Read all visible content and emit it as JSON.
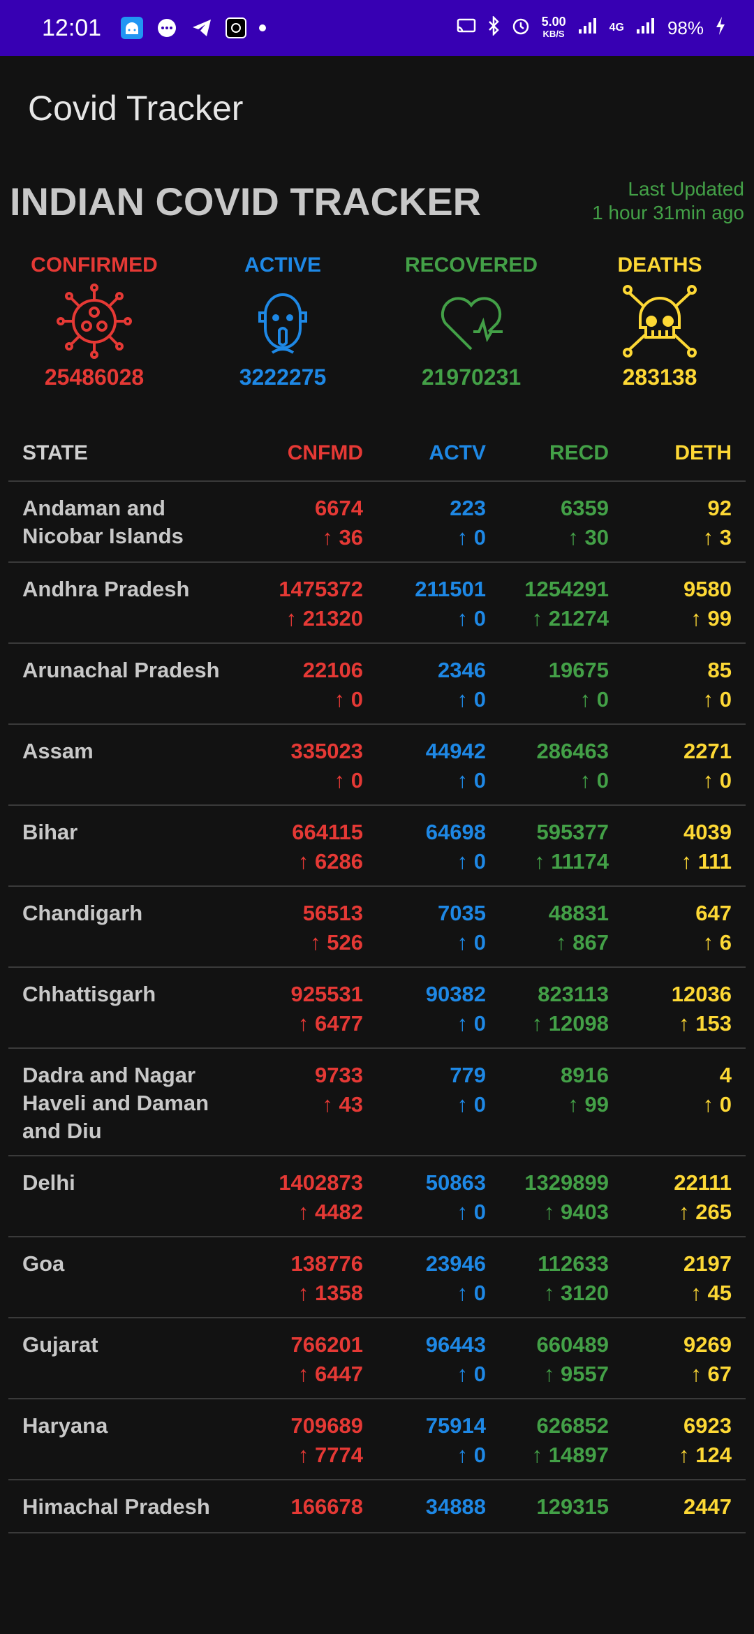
{
  "status_bar": {
    "time": "12:01",
    "speed_value": "5.00",
    "speed_unit": "KB/S",
    "battery": "98%",
    "network": "4G",
    "icons": [
      "android-icon",
      "messages-icon",
      "telegram-icon",
      "app-icon",
      "dot-icon",
      "cast-icon",
      "bluetooth-icon",
      "alarm-icon",
      "signal-icon",
      "battery-charging-icon"
    ]
  },
  "app_bar": {
    "title": "Covid Tracker"
  },
  "header": {
    "title": "INDIAN COVID TRACKER",
    "updated_line1": "Last Updated",
    "updated_line2": "1 hour 31min ago"
  },
  "summary": {
    "confirmed_label": "CONFIRMED",
    "confirmed_value": "25486028",
    "active_label": "ACTIVE",
    "active_value": "3222275",
    "recovered_label": "RECOVERED",
    "recovered_value": "21970231",
    "deaths_label": "DEATHS",
    "deaths_value": "283138",
    "icons": [
      "virus-icon",
      "masked-face-icon",
      "heart-pulse-icon",
      "skull-crossbones-icon"
    ]
  },
  "table": {
    "headers": {
      "state": "STATE",
      "confirmed": "CNFMD",
      "active": "ACTV",
      "recovered": "RECD",
      "deaths": "DETH"
    },
    "rows": [
      {
        "state": "Andaman and Nicobar Islands",
        "confirmed": "6674",
        "confirmed_delta": "↑ 36",
        "active": "223",
        "active_delta": "↑ 0",
        "recovered": "6359",
        "recovered_delta": "↑ 30",
        "deaths": "92",
        "deaths_delta": "↑ 3"
      },
      {
        "state": "Andhra Pradesh",
        "confirmed": "1475372",
        "confirmed_delta": "↑ 21320",
        "active": "211501",
        "active_delta": "↑ 0",
        "recovered": "1254291",
        "recovered_delta": "↑ 21274",
        "deaths": "9580",
        "deaths_delta": "↑ 99"
      },
      {
        "state": "Arunachal Pradesh",
        "confirmed": "22106",
        "confirmed_delta": "↑ 0",
        "active": "2346",
        "active_delta": "↑ 0",
        "recovered": "19675",
        "recovered_delta": "↑ 0",
        "deaths": "85",
        "deaths_delta": "↑ 0"
      },
      {
        "state": "Assam",
        "confirmed": "335023",
        "confirmed_delta": "↑ 0",
        "active": "44942",
        "active_delta": "↑ 0",
        "recovered": "286463",
        "recovered_delta": "↑ 0",
        "deaths": "2271",
        "deaths_delta": "↑ 0"
      },
      {
        "state": "Bihar",
        "confirmed": "664115",
        "confirmed_delta": "↑ 6286",
        "active": "64698",
        "active_delta": "↑ 0",
        "recovered": "595377",
        "recovered_delta": "↑ 11174",
        "deaths": "4039",
        "deaths_delta": "↑ 111"
      },
      {
        "state": "Chandigarh",
        "confirmed": "56513",
        "confirmed_delta": "↑ 526",
        "active": "7035",
        "active_delta": "↑ 0",
        "recovered": "48831",
        "recovered_delta": "↑ 867",
        "deaths": "647",
        "deaths_delta": "↑ 6"
      },
      {
        "state": "Chhattisgarh",
        "confirmed": "925531",
        "confirmed_delta": "↑ 6477",
        "active": "90382",
        "active_delta": "↑ 0",
        "recovered": "823113",
        "recovered_delta": "↑ 12098",
        "deaths": "12036",
        "deaths_delta": "↑ 153"
      },
      {
        "state": "Dadra and Nagar Haveli and Daman and Diu",
        "confirmed": "9733",
        "confirmed_delta": "↑ 43",
        "active": "779",
        "active_delta": "↑ 0",
        "recovered": "8916",
        "recovered_delta": "↑ 99",
        "deaths": "4",
        "deaths_delta": "↑ 0"
      },
      {
        "state": "Delhi",
        "confirmed": "1402873",
        "confirmed_delta": "↑ 4482",
        "active": "50863",
        "active_delta": "↑ 0",
        "recovered": "1329899",
        "recovered_delta": "↑ 9403",
        "deaths": "22111",
        "deaths_delta": "↑ 265"
      },
      {
        "state": "Goa",
        "confirmed": "138776",
        "confirmed_delta": "↑ 1358",
        "active": "23946",
        "active_delta": "↑ 0",
        "recovered": "112633",
        "recovered_delta": "↑ 3120",
        "deaths": "2197",
        "deaths_delta": "↑ 45"
      },
      {
        "state": "Gujarat",
        "confirmed": "766201",
        "confirmed_delta": "↑ 6447",
        "active": "96443",
        "active_delta": "↑ 0",
        "recovered": "660489",
        "recovered_delta": "↑ 9557",
        "deaths": "9269",
        "deaths_delta": "↑ 67"
      },
      {
        "state": "Haryana",
        "confirmed": "709689",
        "confirmed_delta": "↑ 7774",
        "active": "75914",
        "active_delta": "↑ 0",
        "recovered": "626852",
        "recovered_delta": "↑ 14897",
        "deaths": "6923",
        "deaths_delta": "↑ 124"
      },
      {
        "state": "Himachal Pradesh",
        "confirmed": "166678",
        "confirmed_delta": "",
        "active": "34888",
        "active_delta": "",
        "recovered": "129315",
        "recovered_delta": "",
        "deaths": "2447",
        "deaths_delta": ""
      }
    ]
  },
  "colors": {
    "confirmed": "#e53935",
    "active": "#1e88e5",
    "recovered": "#43a047",
    "deaths": "#fdd835",
    "status_bar": "#3700b3",
    "background": "#121212"
  }
}
